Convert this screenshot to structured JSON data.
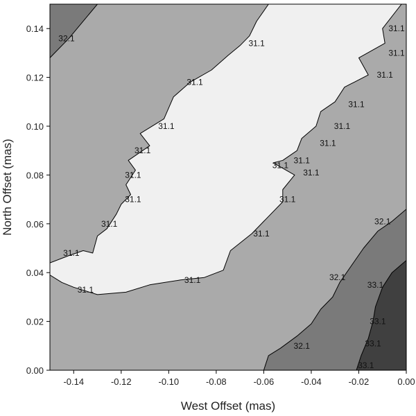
{
  "chart_data": {
    "type": "contour",
    "title": "",
    "xlabel": "West Offset (mas)",
    "ylabel": "North Offset (mas)",
    "xlim": [
      -0.15,
      0.0
    ],
    "ylim": [
      0.0,
      0.15
    ],
    "x_ticks": [
      -0.14,
      -0.12,
      -0.1,
      -0.08,
      -0.06,
      -0.04,
      -0.02,
      0.0
    ],
    "x_tick_labels": [
      "-0.14",
      "-0.12",
      "-0.10",
      "-0.08",
      "-0.06",
      "-0.04",
      "-0.02",
      "0.00"
    ],
    "y_ticks": [
      0.0,
      0.02,
      0.04,
      0.06,
      0.08,
      0.1,
      0.12,
      0.14
    ],
    "y_tick_labels": [
      "0.00",
      "0.02",
      "0.04",
      "0.06",
      "0.08",
      "0.10",
      "0.12",
      "0.14"
    ],
    "grid": false,
    "levels": [
      "31.1",
      "32.1",
      "33.1"
    ],
    "fill_colors": {
      "below_31.1": "#f0f0f0",
      "31.1_to_32.1": "#aaaaaa",
      "32.1_to_33.1": "#7a7a7a",
      "above_33.1": "#404040"
    },
    "regions": [
      {
        "name": "below-31.1-valley",
        "fill": "#f0f0f0",
        "points": [
          [
            -0.15,
            0.044
          ],
          [
            -0.142,
            0.047
          ],
          [
            -0.136,
            0.049
          ],
          [
            -0.132,
            0.048
          ],
          [
            -0.13,
            0.055
          ],
          [
            -0.126,
            0.058
          ],
          [
            -0.122,
            0.064
          ],
          [
            -0.12,
            0.068
          ],
          [
            -0.116,
            0.072
          ],
          [
            -0.118,
            0.076
          ],
          [
            -0.114,
            0.082
          ],
          [
            -0.117,
            0.086
          ],
          [
            -0.108,
            0.092
          ],
          [
            -0.112,
            0.097
          ],
          [
            -0.102,
            0.103
          ],
          [
            -0.098,
            0.112
          ],
          [
            -0.091,
            0.118
          ],
          [
            -0.082,
            0.123
          ],
          [
            -0.075,
            0.129
          ],
          [
            -0.07,
            0.133
          ],
          [
            -0.066,
            0.137
          ],
          [
            -0.063,
            0.143
          ],
          [
            -0.058,
            0.15
          ],
          [
            -0.002,
            0.15
          ],
          [
            -0.01,
            0.14
          ],
          [
            -0.009,
            0.134
          ],
          [
            -0.02,
            0.128
          ],
          [
            -0.016,
            0.121
          ],
          [
            -0.026,
            0.116
          ],
          [
            -0.03,
            0.11
          ],
          [
            -0.036,
            0.106
          ],
          [
            -0.038,
            0.1
          ],
          [
            -0.044,
            0.095
          ],
          [
            -0.046,
            0.09
          ],
          [
            -0.052,
            0.086
          ],
          [
            -0.056,
            0.085
          ],
          [
            -0.047,
            0.08
          ],
          [
            -0.052,
            0.074
          ],
          [
            -0.052,
            0.069
          ],
          [
            -0.058,
            0.063
          ],
          [
            -0.065,
            0.056
          ],
          [
            -0.074,
            0.049
          ],
          [
            -0.077,
            0.041
          ],
          [
            -0.085,
            0.038
          ],
          [
            -0.095,
            0.037
          ],
          [
            -0.108,
            0.035
          ],
          [
            -0.118,
            0.032
          ],
          [
            -0.13,
            0.031
          ],
          [
            -0.14,
            0.034
          ],
          [
            -0.145,
            0.036
          ],
          [
            -0.15,
            0.039
          ]
        ]
      },
      {
        "name": "32.1-33.1-band",
        "fill": "#7a7a7a",
        "points": [
          [
            0.0,
            0.066
          ],
          [
            -0.006,
            0.061
          ],
          [
            -0.012,
            0.057
          ],
          [
            -0.018,
            0.05
          ],
          [
            -0.023,
            0.043
          ],
          [
            -0.028,
            0.036
          ],
          [
            -0.031,
            0.03
          ],
          [
            -0.036,
            0.025
          ],
          [
            -0.04,
            0.019
          ],
          [
            -0.046,
            0.014
          ],
          [
            -0.053,
            0.009
          ],
          [
            -0.058,
            0.006
          ],
          [
            -0.06,
            0.0
          ],
          [
            0.0,
            0.0
          ]
        ]
      },
      {
        "name": "above-33.1-core",
        "fill": "#404040",
        "points": [
          [
            0.0,
            0.045
          ],
          [
            -0.006,
            0.04
          ],
          [
            -0.01,
            0.034
          ],
          [
            -0.013,
            0.026
          ],
          [
            -0.014,
            0.02
          ],
          [
            -0.016,
            0.013
          ],
          [
            -0.019,
            0.006
          ],
          [
            -0.021,
            0.0
          ],
          [
            0.0,
            0.0
          ]
        ]
      },
      {
        "name": "top-left-32.1-corner",
        "fill": "#7a7a7a",
        "points": [
          [
            -0.15,
            0.15
          ],
          [
            -0.13,
            0.15
          ],
          [
            -0.136,
            0.143
          ],
          [
            -0.142,
            0.136
          ],
          [
            -0.15,
            0.128
          ]
        ]
      }
    ],
    "contour_labels": [
      {
        "text": "32.1",
        "x": -0.143,
        "y": 0.136
      },
      {
        "text": "31.1",
        "x": -0.063,
        "y": 0.134
      },
      {
        "text": "31.1",
        "x": -0.0,
        "y": 0.14
      },
      {
        "text": "31.1",
        "x": -0.004,
        "y": 0.13
      },
      {
        "text": "31.1",
        "x": -0.009,
        "y": 0.121
      },
      {
        "text": "31.1",
        "x": -0.089,
        "y": 0.118
      },
      {
        "text": "31.1",
        "x": -0.021,
        "y": 0.109
      },
      {
        "text": "31.1",
        "x": -0.101,
        "y": 0.1
      },
      {
        "text": "31.1",
        "x": -0.027,
        "y": 0.1
      },
      {
        "text": "31.1",
        "x": -0.111,
        "y": 0.09
      },
      {
        "text": "31.1",
        "x": -0.033,
        "y": 0.093
      },
      {
        "text": "31.1",
        "x": -0.044,
        "y": 0.086
      },
      {
        "text": "31.1",
        "x": -0.053,
        "y": 0.084
      },
      {
        "text": "31.1",
        "x": -0.115,
        "y": 0.08
      },
      {
        "text": "31.1",
        "x": -0.04,
        "y": 0.081
      },
      {
        "text": "31.1",
        "x": -0.115,
        "y": 0.07
      },
      {
        "text": "31.1",
        "x": -0.05,
        "y": 0.07
      },
      {
        "text": "31.1",
        "x": -0.125,
        "y": 0.06
      },
      {
        "text": "31.1",
        "x": -0.141,
        "y": 0.048
      },
      {
        "text": "31.1",
        "x": -0.061,
        "y": 0.056
      },
      {
        "text": "32.1",
        "x": -0.01,
        "y": 0.061
      },
      {
        "text": "31.1",
        "x": -0.135,
        "y": 0.033
      },
      {
        "text": "31.1",
        "x": -0.09,
        "y": 0.037
      },
      {
        "text": "32.1",
        "x": -0.029,
        "y": 0.038
      },
      {
        "text": "33.1",
        "x": -0.013,
        "y": 0.035
      },
      {
        "text": "33.1",
        "x": -0.012,
        "y": 0.02
      },
      {
        "text": "32.1",
        "x": -0.044,
        "y": 0.01
      },
      {
        "text": "33.1",
        "x": -0.014,
        "y": 0.011
      },
      {
        "text": "33.1",
        "x": -0.017,
        "y": 0.002
      }
    ]
  }
}
